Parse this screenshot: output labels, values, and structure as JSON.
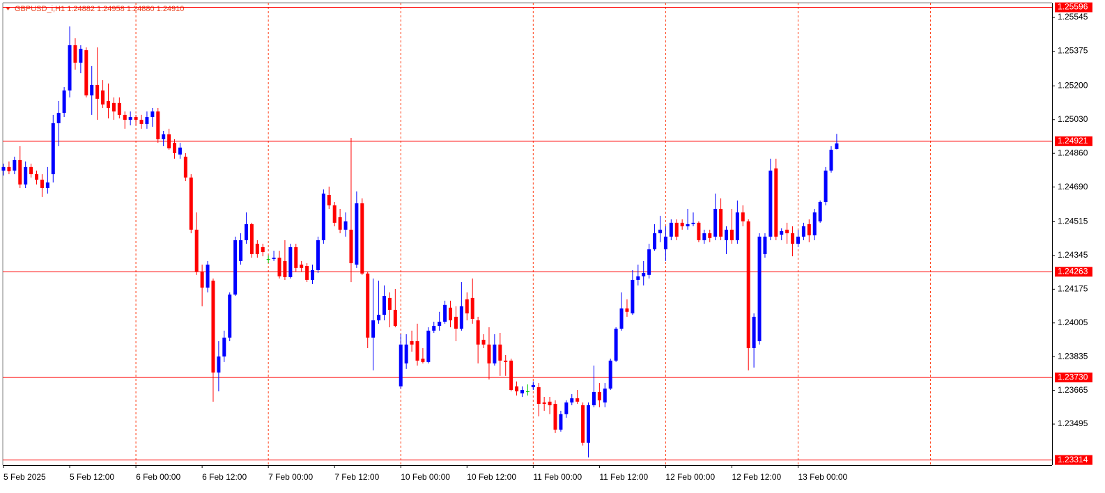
{
  "chart_data": {
    "type": "candlestick",
    "title": "GBPUSD_i,H1  1.24882 1.24958 1.24880 1.24910",
    "categories": [
      "5 Feb 2025",
      null,
      null,
      null,
      null,
      null,
      null,
      null,
      null,
      null,
      null,
      null,
      "5 Feb 12:00",
      null,
      null,
      null,
      null,
      null,
      null,
      null,
      null,
      null,
      null,
      null,
      "6 Feb 00:00",
      null,
      null,
      null,
      null,
      null,
      null,
      null,
      null,
      null,
      null,
      null,
      "6 Feb 12:00",
      null,
      null,
      null,
      null,
      null,
      null,
      null,
      null,
      null,
      null,
      null,
      "7 Feb 00:00",
      null,
      null,
      null,
      null,
      null,
      null,
      null,
      null,
      null,
      null,
      null,
      "7 Feb 12:00",
      null,
      null,
      null,
      null,
      null,
      null,
      null,
      null,
      null,
      null,
      null,
      "10 Feb 00:00",
      null,
      null,
      null,
      null,
      null,
      null,
      null,
      null,
      null,
      null,
      null,
      "10 Feb 12:00",
      null,
      null,
      null,
      null,
      null,
      null,
      null,
      null,
      null,
      null,
      null,
      "11 Feb 00:00",
      null,
      null,
      null,
      null,
      null,
      null,
      null,
      null,
      null,
      null,
      null,
      "11 Feb 12:00",
      null,
      null,
      null,
      null,
      null,
      null,
      null,
      null,
      null,
      null,
      null,
      "12 Feb 00:00",
      null,
      null,
      null,
      null,
      null,
      null,
      null,
      null,
      null,
      null,
      null,
      "12 Feb 12:00",
      null,
      null,
      null,
      null,
      null,
      null,
      null,
      null,
      null,
      null,
      null,
      "13 Feb 00:00",
      null,
      null,
      null,
      null,
      null,
      null,
      null
    ],
    "open": [
      1.24773,
      1.24791,
      1.24773,
      1.24826,
      1.24703,
      1.24791,
      1.24755,
      1.24727,
      1.24685,
      1.24755,
      1.25012,
      1.25064,
      1.25177,
      1.25405,
      1.25317,
      1.2538,
      1.25152,
      1.25205,
      1.25177,
      1.25124,
      1.25114,
      1.25114,
      1.25054,
      1.25029,
      1.25043,
      1.25029,
      1.25008,
      1.25043,
      1.25071,
      1.24931,
      1.24956,
      1.24913,
      1.24854,
      1.24843,
      1.24738,
      1.24475,
      1.24264,
      1.24183,
      1.24218,
      1.23755,
      1.23836,
      1.23931,
      1.24148,
      1.24317,
      1.24422,
      1.24503,
      1.24404,
      1.24387,
      1.24327,
      1.24327,
      1.24334,
      1.24317,
      1.24236,
      1.24387,
      1.24299,
      1.24292,
      1.24222,
      1.24271,
      1.24422,
      1.2465,
      1.24598,
      1.24538,
      1.24475,
      1.24475,
      1.24299,
      1.24608,
      1.24254,
      1.23931,
      1.24018,
      1.24046,
      1.24131,
      1.24071,
      1.23685,
      1.23801,
      1.23913,
      1.23913,
      1.23825,
      1.23808,
      1.23966,
      1.2399,
      1.24011,
      1.24082,
      1.24036,
      1.23976,
      1.24124,
      1.24131,
      1.24018,
      1.2392,
      1.23896,
      1.23801,
      1.23896,
      1.23815,
      1.23815,
      1.23685,
      1.2365,
      1.2366,
      1.23681,
      1.23681,
      1.23604,
      1.23608,
      1.23597,
      1.23467,
      1.23545,
      1.23604,
      1.23625,
      1.2359,
      1.23401,
      1.2359,
      1.23657,
      1.23604,
      1.23674,
      1.23815,
      1.23976,
      1.24078,
      1.24053,
      1.24222,
      1.2424,
      1.24247,
      1.24376,
      1.24457,
      1.24376,
      1.2444,
      1.2451,
      1.2451,
      1.24492,
      1.24503,
      1.2451,
      1.24422,
      1.24457,
      1.2444,
      1.2458,
      1.24422,
      1.24475,
      1.24422,
      1.24562,
      1.24517,
      1.23878,
      1.23913,
      1.24352,
      1.2444,
      1.24784,
      1.2445,
      1.24475,
      1.24457,
      1.24404,
      1.2444,
      1.24503,
      1.24447,
      1.24517,
      1.24615,
      1.24773,
      1.24882
    ],
    "high": [
      1.24808,
      1.24819,
      1.24843,
      1.24896,
      1.24819,
      1.24808,
      1.24773,
      1.24755,
      1.24791,
      1.25054,
      1.25124,
      1.25194,
      1.255,
      1.2544,
      1.25405,
      1.25394,
      1.253,
      1.25394,
      1.25229,
      1.25212,
      1.25142,
      1.25142,
      1.25071,
      1.25071,
      1.25054,
      1.25054,
      1.25071,
      1.25089,
      1.25089,
      1.24973,
      1.24984,
      1.24931,
      1.24913,
      1.24861,
      1.24755,
      1.24562,
      1.24299,
      1.24317,
      1.24229,
      1.23913,
      1.23966,
      1.24159,
      1.2444,
      1.24457,
      1.24562,
      1.2451,
      1.24422,
      1.24404,
      1.24345,
      1.24369,
      1.24369,
      1.24422,
      1.24404,
      1.24404,
      1.24317,
      1.24306,
      1.24299,
      1.2444,
      1.24678,
      1.24692,
      1.24615,
      1.2458,
      1.24562,
      1.24938,
      1.24668,
      1.24633,
      1.24264,
      1.24229,
      1.24218,
      1.24194,
      1.24159,
      1.24176,
      1.23948,
      1.23948,
      1.23966,
      1.24001,
      1.23878,
      1.23983,
      1.24011,
      1.24061,
      1.24117,
      1.24117,
      1.24089,
      1.24211,
      1.24159,
      1.24229,
      1.24036,
      1.23948,
      1.23983,
      1.23948,
      1.23955,
      1.23843,
      1.23825,
      1.2371,
      1.23685,
      1.23695,
      1.2371,
      1.23702,
      1.23632,
      1.23632,
      1.23615,
      1.23562,
      1.23615,
      1.23646,
      1.23667,
      1.23604,
      1.23604,
      1.2379,
      1.23702,
      1.23702,
      1.23825,
      1.23983,
      1.24159,
      1.24124,
      1.24271,
      1.24299,
      1.24317,
      1.24404,
      1.24503,
      1.24545,
      1.24492,
      1.24527,
      1.24527,
      1.24527,
      1.2458,
      1.24562,
      1.24517,
      1.24475,
      1.24475,
      1.24657,
      1.24633,
      1.24492,
      1.2458,
      1.24622,
      1.24598,
      1.24527,
      1.24053,
      1.24457,
      1.24457,
      1.24833,
      1.24833,
      1.24482,
      1.2451,
      1.24492,
      1.24475,
      1.2451,
      1.24527,
      1.2458,
      1.24622,
      1.24791,
      1.24896,
      1.24958
    ],
    "low": [
      1.24748,
      1.24755,
      1.24755,
      1.24685,
      1.24685,
      1.24738,
      1.24703,
      1.2464,
      1.24657,
      1.24713,
      1.24896,
      1.25043,
      1.25142,
      1.25282,
      1.25264,
      1.25142,
      1.25054,
      1.25029,
      1.25089,
      1.25036,
      1.25029,
      1.25036,
      1.24984,
      1.25001,
      1.25001,
      1.24984,
      1.24984,
      1.24994,
      1.24913,
      1.24896,
      1.24878,
      1.24833,
      1.24833,
      1.2472,
      1.24457,
      1.24247,
      1.24089,
      1.24159,
      1.23608,
      1.2366,
      1.23808,
      1.23913,
      1.24141,
      1.24299,
      1.24404,
      1.24334,
      1.24334,
      1.24341,
      1.24306,
      1.24317,
      1.24229,
      1.24222,
      1.24229,
      1.24264,
      1.24264,
      1.24211,
      1.24201,
      1.24257,
      1.24404,
      1.2458,
      1.24492,
      1.24457,
      1.2444,
      1.24211,
      1.24282,
      1.24247,
      1.23878,
      1.23766,
      1.24001,
      1.24018,
      1.23983,
      1.23983,
      1.23674,
      1.23773,
      1.2386,
      1.2379,
      1.23801,
      1.23801,
      1.23955,
      1.23966,
      1.24001,
      1.23983,
      1.23913,
      1.23966,
      1.24018,
      1.24001,
      1.23801,
      1.23878,
      1.2372,
      1.2379,
      1.23738,
      1.23738,
      1.2366,
      1.23639,
      1.23632,
      1.23639,
      1.23667,
      1.23534,
      1.23562,
      1.23545,
      1.2345,
      1.23457,
      1.23527,
      1.2359,
      1.23597,
      1.23387,
      1.23327,
      1.2358,
      1.2358,
      1.2358,
      1.23667,
      1.23808,
      1.23966,
      1.24036,
      1.24046,
      1.24194,
      1.24194,
      1.24229,
      1.24369,
      1.24412,
      1.24317,
      1.24422,
      1.24422,
      1.24475,
      1.24475,
      1.24492,
      1.24412,
      1.24404,
      1.24412,
      1.24422,
      1.24422,
      1.24352,
      1.24404,
      1.24404,
      1.24492,
      1.23766,
      1.2378,
      1.23896,
      1.24334,
      1.24422,
      1.24422,
      1.24422,
      1.24404,
      1.24341,
      1.24387,
      1.24422,
      1.24412,
      1.24422,
      1.2451,
      1.24598,
      1.24763,
      1.2488
    ],
    "close": [
      1.24791,
      1.2477,
      1.24826,
      1.24703,
      1.24791,
      1.24755,
      1.24727,
      1.24685,
      1.24713,
      1.25012,
      1.25064,
      1.25177,
      1.25405,
      1.25317,
      1.25387,
      1.25152,
      1.25205,
      1.25135,
      1.25106,
      1.25089,
      1.25071,
      1.25054,
      1.25029,
      1.25043,
      1.25029,
      1.25008,
      1.25043,
      1.25071,
      1.24931,
      1.24956,
      1.24885,
      1.24861,
      1.24889,
      1.24738,
      1.24475,
      1.24264,
      1.24183,
      1.24299,
      1.23755,
      1.23836,
      1.23931,
      1.24148,
      1.24422,
      1.24422,
      1.24503,
      1.24352,
      1.24352,
      1.24362,
      1.24327,
      1.24334,
      1.2424,
      1.24236,
      1.24387,
      1.24282,
      1.24282,
      1.24222,
      1.24271,
      1.24422,
      1.24657,
      1.24598,
      1.2451,
      1.24475,
      1.24517,
      1.24306,
      1.24608,
      1.24254,
      1.23931,
      1.24018,
      1.24046,
      1.24141,
      1.24071,
      1.2399,
      1.23896,
      1.23896,
      1.23896,
      1.23815,
      1.23808,
      1.23966,
      1.2399,
      1.24011,
      1.24096,
      1.24018,
      1.23976,
      1.24089,
      1.24053,
      1.24025,
      1.23896,
      1.23896,
      1.23801,
      1.23896,
      1.23815,
      1.23808,
      1.23667,
      1.2366,
      1.23667,
      1.2366,
      1.23692,
      1.23597,
      1.23597,
      1.2359,
      1.23467,
      1.23545,
      1.23604,
      1.23625,
      1.23608,
      1.23401,
      1.2359,
      1.23657,
      1.23615,
      1.23674,
      1.23815,
      1.23976,
      1.24078,
      1.24061,
      1.24222,
      1.2424,
      1.24257,
      1.24376,
      1.24457,
      1.24475,
      1.2444,
      1.2451,
      1.2444,
      1.24492,
      1.24503,
      1.2451,
      1.24422,
      1.24457,
      1.24433,
      1.2458,
      1.2444,
      1.24475,
      1.24422,
      1.24562,
      1.24517,
      1.23878,
      1.24036,
      1.2444,
      1.2444,
      1.24773,
      1.2444,
      1.24468,
      1.24457,
      1.24404,
      1.2444,
      1.24492,
      1.24447,
      1.24562,
      1.24615,
      1.24773,
      1.24878,
      1.2491
    ],
    "up_color": "#0000ff",
    "down_color": "#ff0000",
    "doji_color": "#00c800",
    "ylim": [
      1.23288,
      1.25633
    ],
    "yticks": [
      1.25545,
      1.25375,
      {
        "value": 1.252,
        "label": "1.25200"
      },
      {
        "value": 1.2503,
        "label": "1.25030"
      },
      {
        "value": 1.2486,
        "label": "1.24860"
      },
      {
        "value": 1.2469,
        "label": "1.24690"
      },
      1.24515,
      1.24345,
      1.24175,
      1.24005,
      1.23835,
      1.23665,
      1.23495
    ],
    "hlines": [
      1.25596,
      1.24921,
      1.24263,
      {
        "value": 1.2373,
        "label": "1.23730"
      },
      1.23314
    ],
    "hline_color": "#ff0000",
    "grid": false
  }
}
